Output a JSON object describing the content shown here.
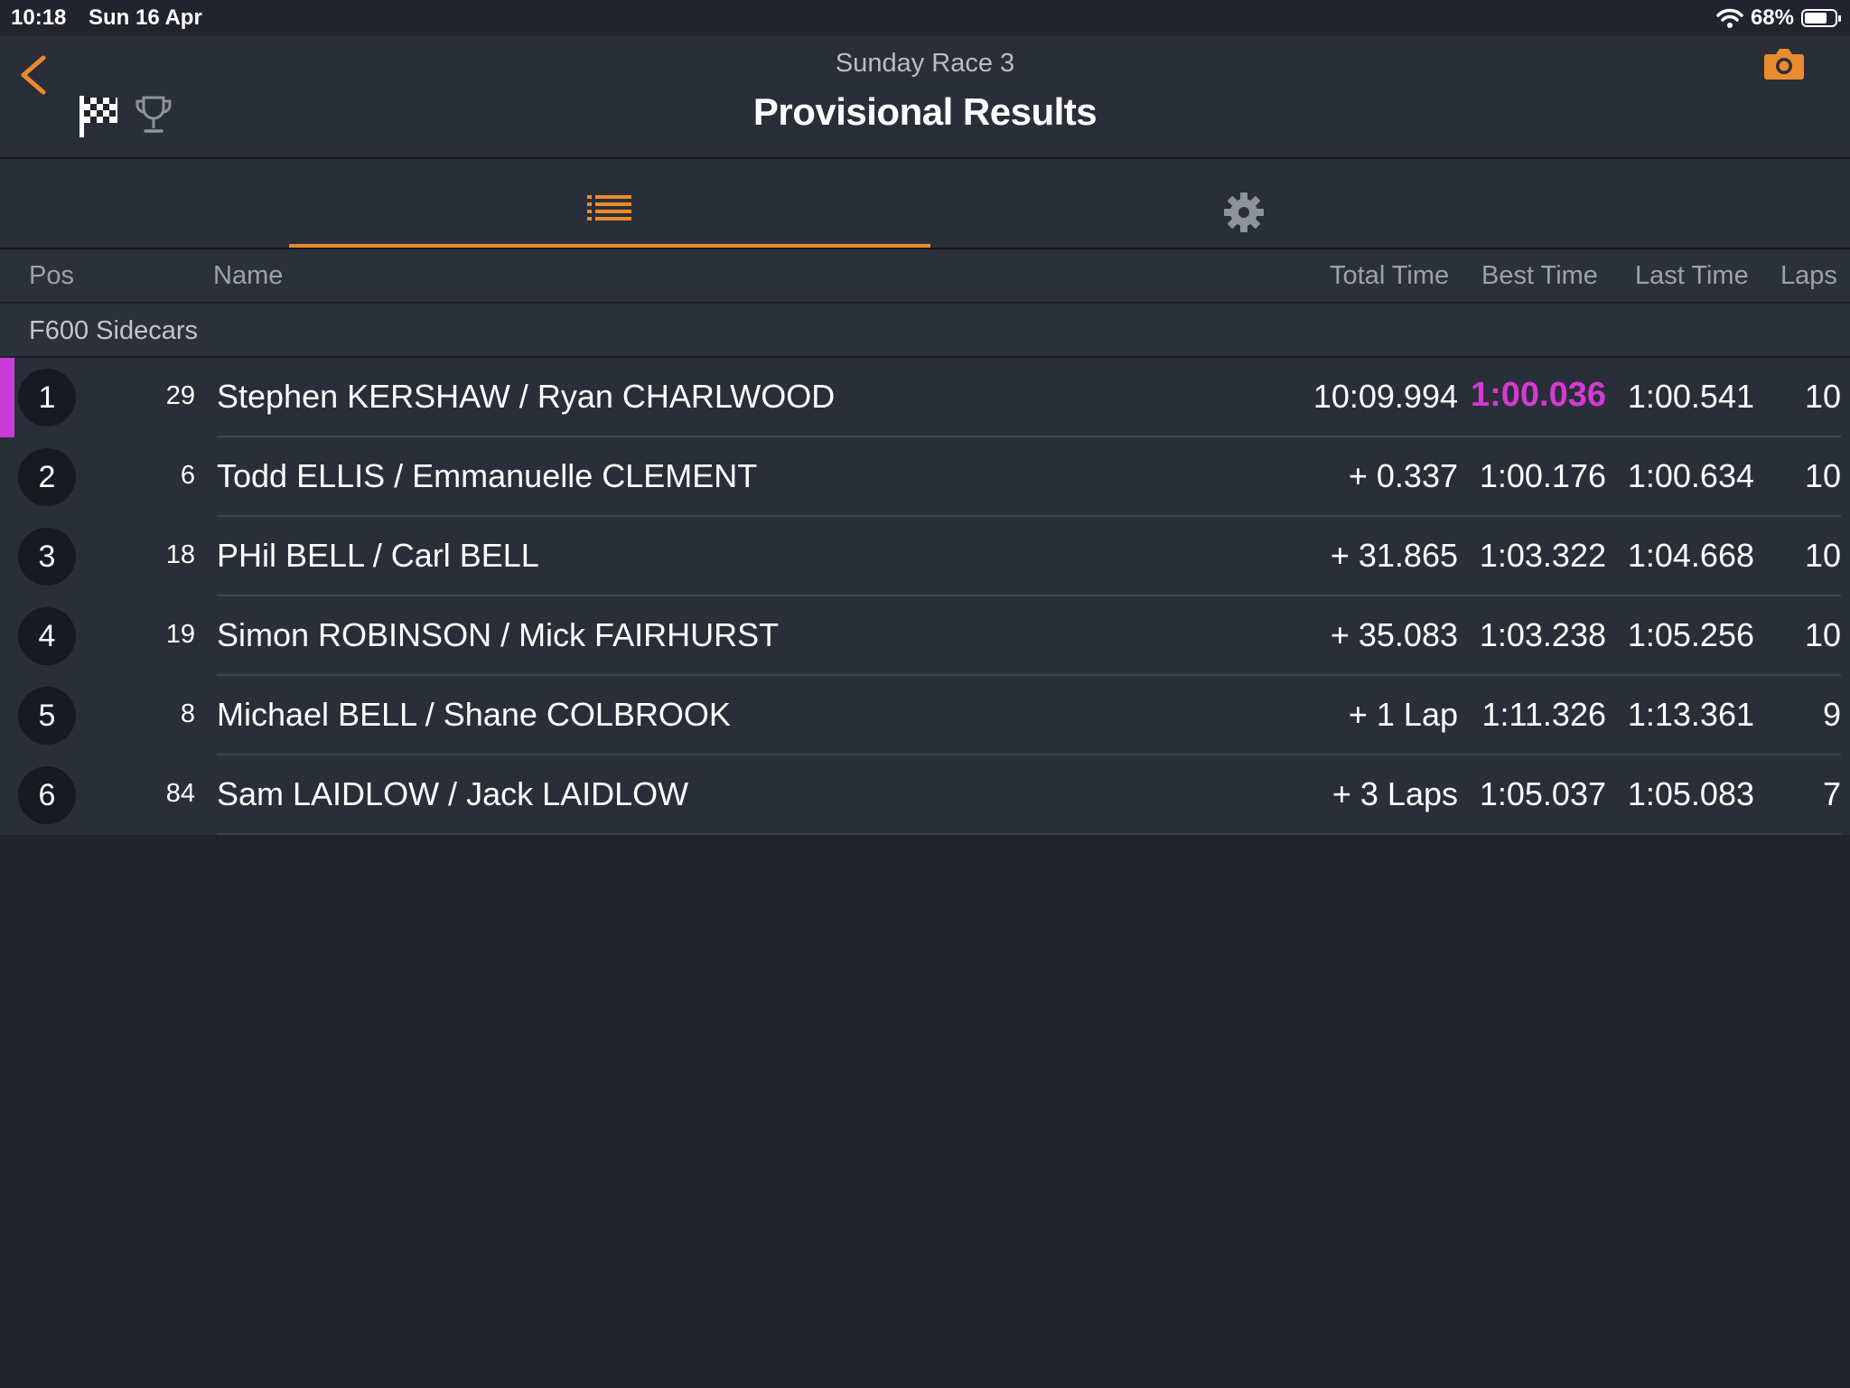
{
  "status": {
    "time": "10:18",
    "date": "Sun 16 Apr",
    "battery": "68%",
    "battery_level": 0.68
  },
  "nav": {
    "subtitle": "Sunday Race 3",
    "title": "Provisional Results"
  },
  "icons": {
    "back": "chevron-left-icon",
    "flag": "checkered-flag-icon",
    "trophy": "trophy-icon",
    "camera": "camera-icon",
    "list": "list-icon",
    "settings": "gear-icon"
  },
  "colors": {
    "accent": "#e88b2f",
    "fastest": "#d43ad2",
    "leader_marker": "#c93ad6"
  },
  "columns": {
    "pos": "Pos",
    "name": "Name",
    "total": "Total Time",
    "best": "Best Time",
    "last": "Last Time",
    "laps": "Laps"
  },
  "group": "F600 Sidecars",
  "results": [
    {
      "pos": "1",
      "num": "29",
      "name": "Stephen KERSHAW / Ryan CHARLWOOD",
      "total": "10:09.994",
      "best": "1:00.036",
      "last": "1:00.541",
      "laps": "10"
    },
    {
      "pos": "2",
      "num": "6",
      "name": "Todd ELLIS / Emmanuelle CLEMENT",
      "total": "+ 0.337",
      "best": "1:00.176",
      "last": "1:00.634",
      "laps": "10"
    },
    {
      "pos": "3",
      "num": "18",
      "name": "PHil BELL / Carl BELL",
      "total": "+ 31.865",
      "best": "1:03.322",
      "last": "1:04.668",
      "laps": "10"
    },
    {
      "pos": "4",
      "num": "19",
      "name": "Simon ROBINSON / Mick FAIRHURST",
      "total": "+ 35.083",
      "best": "1:03.238",
      "last": "1:05.256",
      "laps": "10"
    },
    {
      "pos": "5",
      "num": "8",
      "name": "Michael BELL / Shane COLBROOK",
      "total": "+ 1 Lap",
      "best": "1:11.326",
      "last": "1:13.361",
      "laps": "9"
    },
    {
      "pos": "6",
      "num": "84",
      "name": "Sam LAIDLOW / Jack LAIDLOW",
      "total": "+ 3 Laps",
      "best": "1:05.037",
      "last": "1:05.083",
      "laps": "7"
    }
  ]
}
